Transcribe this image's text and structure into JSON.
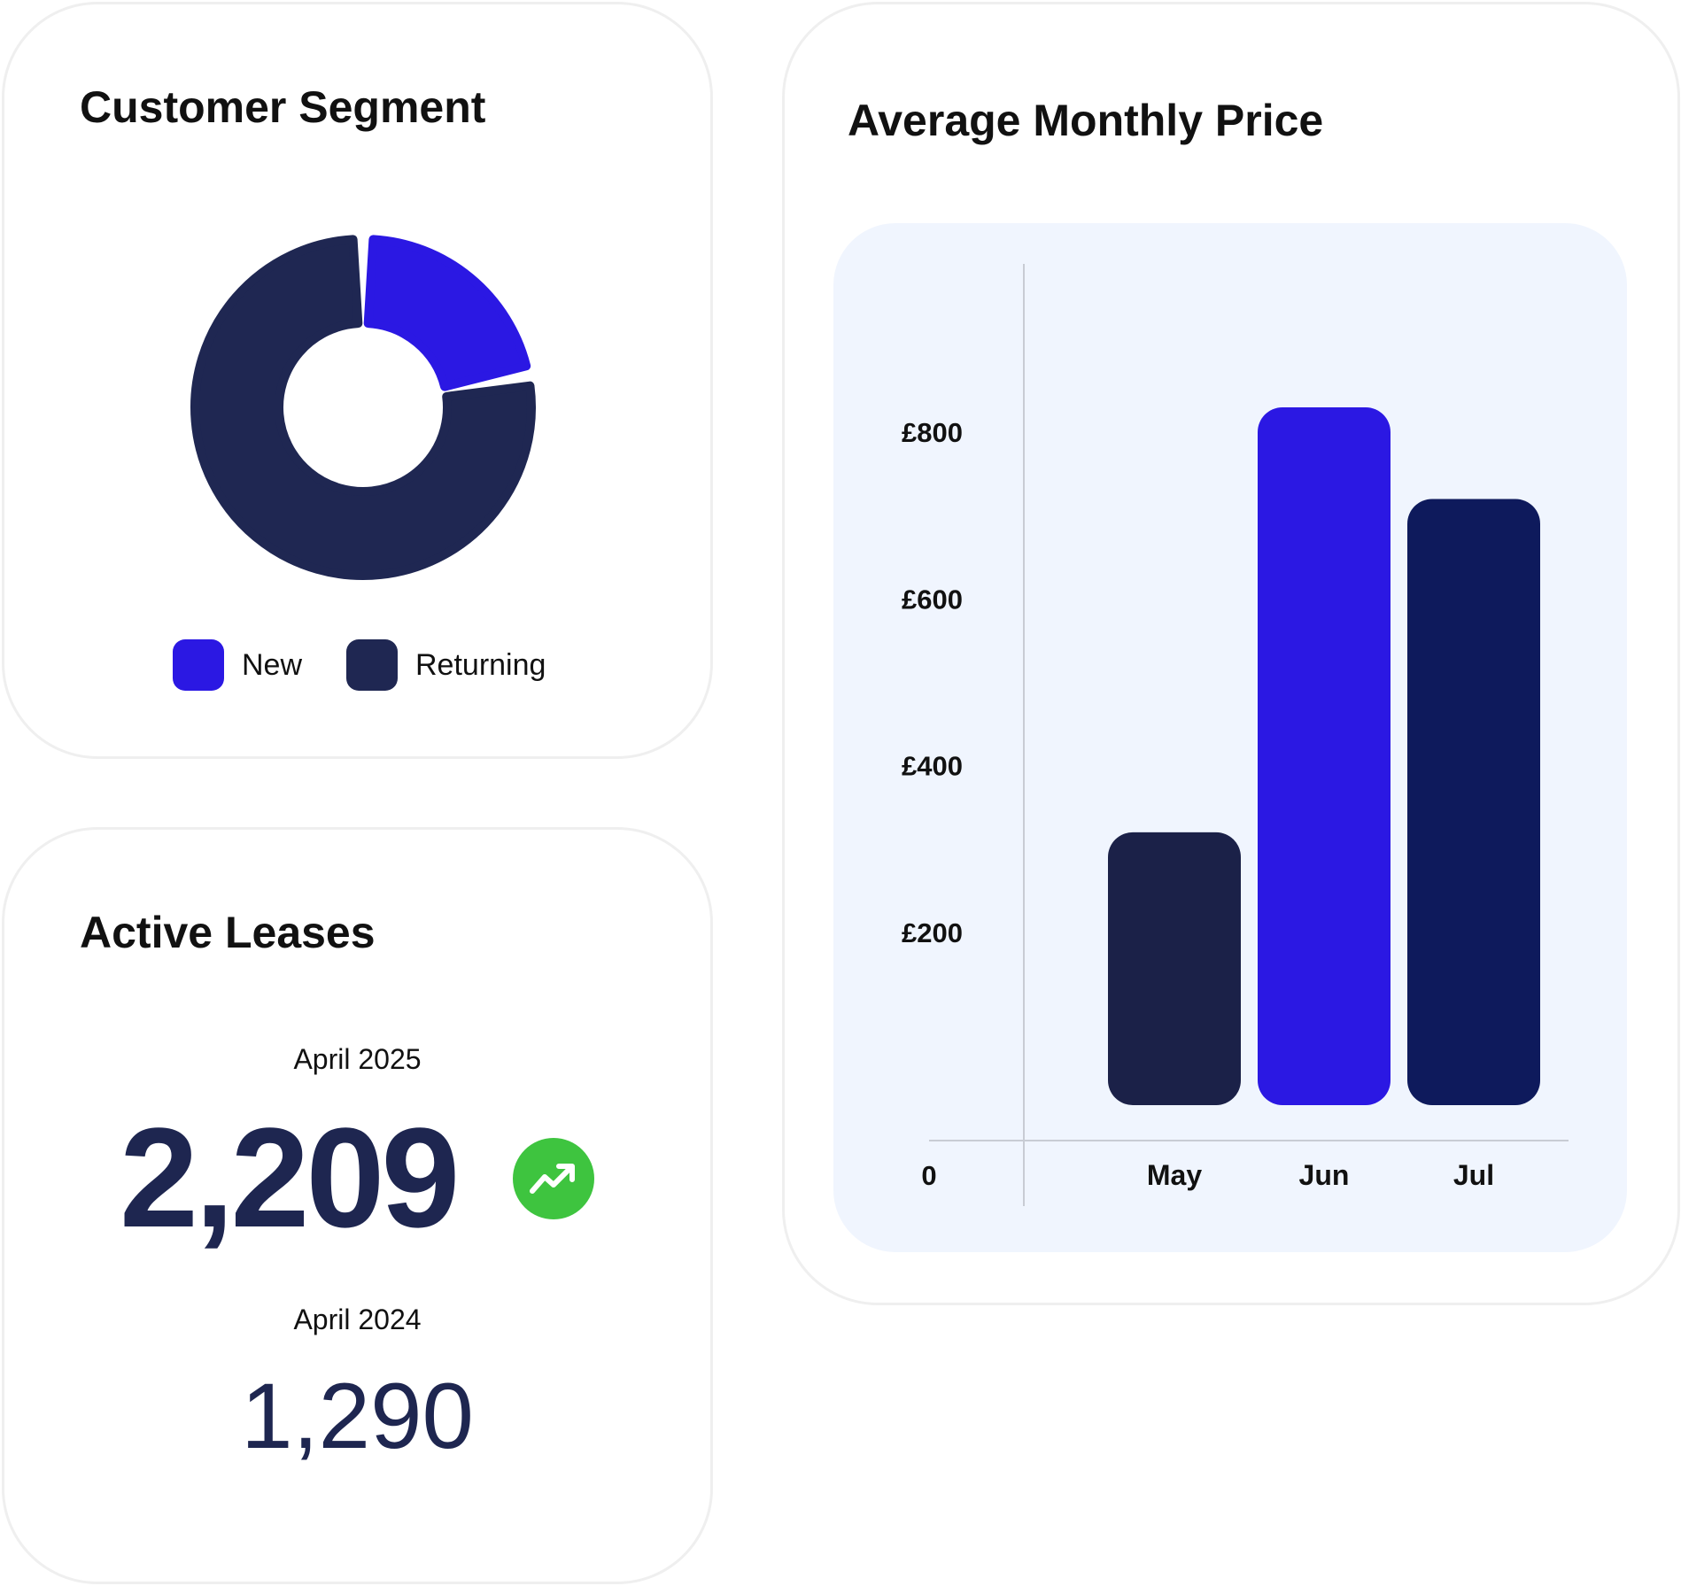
{
  "customer_segment": {
    "title": "Customer Segment",
    "legend": [
      {
        "label": "New",
        "color": "#2b18e3"
      },
      {
        "label": "Returning",
        "color": "#1f2752"
      }
    ]
  },
  "active_leases": {
    "title": "Active Leases",
    "current_period": "April 2025",
    "current_value": "2,209",
    "previous_period": "April 2024",
    "previous_value": "1,290",
    "trend_icon": "trending-up-icon",
    "trend_color": "#3ec43f"
  },
  "average_price": {
    "title": "Average Monthly Price"
  },
  "chart_data": [
    {
      "type": "pie",
      "title": "Customer Segment",
      "style": "donut",
      "categories": [
        "New",
        "Returning"
      ],
      "values": [
        22,
        78
      ],
      "colors": [
        "#2b18e3",
        "#1f2752"
      ]
    },
    {
      "type": "bar",
      "title": "Average Monthly Price",
      "categories": [
        "May",
        "Jun",
        "Jul"
      ],
      "values": [
        320,
        830,
        720
      ],
      "colors": [
        "#1b2148",
        "#2b18e3",
        "#0e1a5c"
      ],
      "ylim": [
        -50,
        1000
      ],
      "yticks": [
        0,
        200,
        400,
        600,
        800
      ],
      "ytick_labels": [
        "0",
        "£200",
        "£400",
        "£600",
        "£800"
      ],
      "xlabel": "",
      "ylabel": "",
      "grid": false
    }
  ]
}
